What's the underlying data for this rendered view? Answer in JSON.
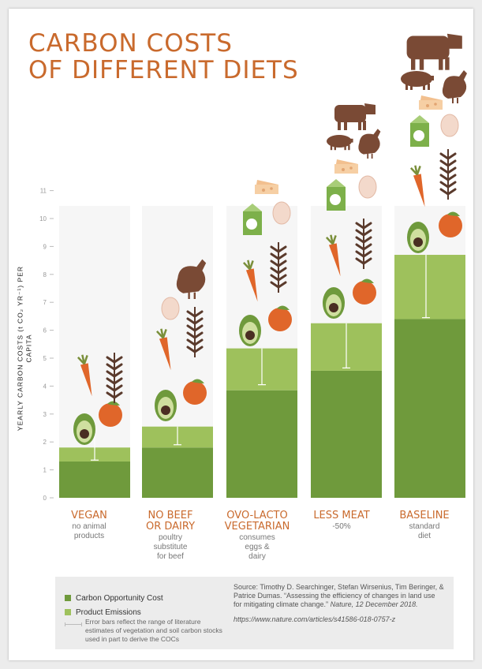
{
  "title": [
    "CARBON COSTS",
    "OF DIFFERENT DIETS"
  ],
  "colors": {
    "title": "#c96a2d",
    "opportunity": "#6f9a3c",
    "emissions": "#9ec15c"
  },
  "chart_data": {
    "type": "bar",
    "stacked": true,
    "ylabel": "YEARLY CARBON COSTS (t CO₂ YR⁻¹) PER CAPITA",
    "ylim": [
      0,
      11
    ],
    "yticks": [
      "0",
      "1",
      "2",
      "3",
      "4",
      "5",
      "6",
      "7",
      "8",
      "9",
      "10",
      "11"
    ],
    "categories": [
      "VEGAN",
      "NO BEEF OR DAIRY",
      "OVO-LACTO VEGETARIAN",
      "LESS MEAT",
      "BASELINE"
    ],
    "series": [
      {
        "name": "Carbon Opportunity Cost",
        "values": [
          1.3,
          1.8,
          3.85,
          4.55,
          6.4
        ]
      },
      {
        "name": "Product Emissions",
        "values": [
          0.5,
          0.75,
          1.5,
          1.7,
          2.3
        ]
      }
    ],
    "error_bars": [
      [
        1.35,
        2.2
      ],
      [
        1.9,
        2.55
      ],
      [
        4.05,
        5.35
      ],
      [
        4.65,
        6.25
      ],
      [
        6.45,
        8.7
      ]
    ],
    "icons": [
      [
        "avocado-icon",
        "carrot-icon",
        "orange-icon",
        "wheat-icon"
      ],
      [
        "avocado-icon",
        "carrot-icon",
        "orange-icon",
        "wheat-icon",
        "egg-icon",
        "chicken-icon"
      ],
      [
        "avocado-icon",
        "carrot-icon",
        "orange-icon",
        "wheat-icon",
        "egg-icon",
        "milk-icon",
        "cheese-icon"
      ],
      [
        "avocado-icon",
        "carrot-icon",
        "orange-icon",
        "wheat-icon",
        "egg-icon",
        "milk-icon",
        "cheese-icon",
        "pig-icon",
        "chicken-icon",
        "cow-icon"
      ],
      [
        "avocado-icon",
        "carrot-icon",
        "orange-icon",
        "wheat-icon",
        "egg-icon",
        "milk-icon",
        "cheese-icon",
        "pig-icon",
        "chicken-icon",
        "cow-icon"
      ]
    ]
  },
  "diets": [
    {
      "name": "VEGAN",
      "desc": "no animal\nproducts"
    },
    {
      "name": "NO BEEF\nOR DAIRY",
      "desc": "poultry\nsubstitute\nfor beef"
    },
    {
      "name": "OVO-LACTO\nVEGETARIAN",
      "desc": "consumes\neggs &\ndairy"
    },
    {
      "name": "LESS MEAT",
      "desc": "-50%"
    },
    {
      "name": "BASELINE",
      "desc": "standard\ndiet"
    }
  ],
  "legend": {
    "opportunity": "Carbon Opportunity Cost",
    "emissions": "Product Emissions",
    "error_note": "Error bars reflect the range of literature estimates of vegetation and soil carbon stocks used in part to derive the COCs"
  },
  "source": {
    "text": "Source: Timothy D. Searchinger, Stefan Wirsenius, Tim Beringer, & Patrice Dumas. “Assessing the efficiency of changes in land use for mitigating climate change.”",
    "citation": "Nature, 12 December 2018.",
    "url": "https://www.nature.com/articles/s41586-018-0757-z"
  }
}
